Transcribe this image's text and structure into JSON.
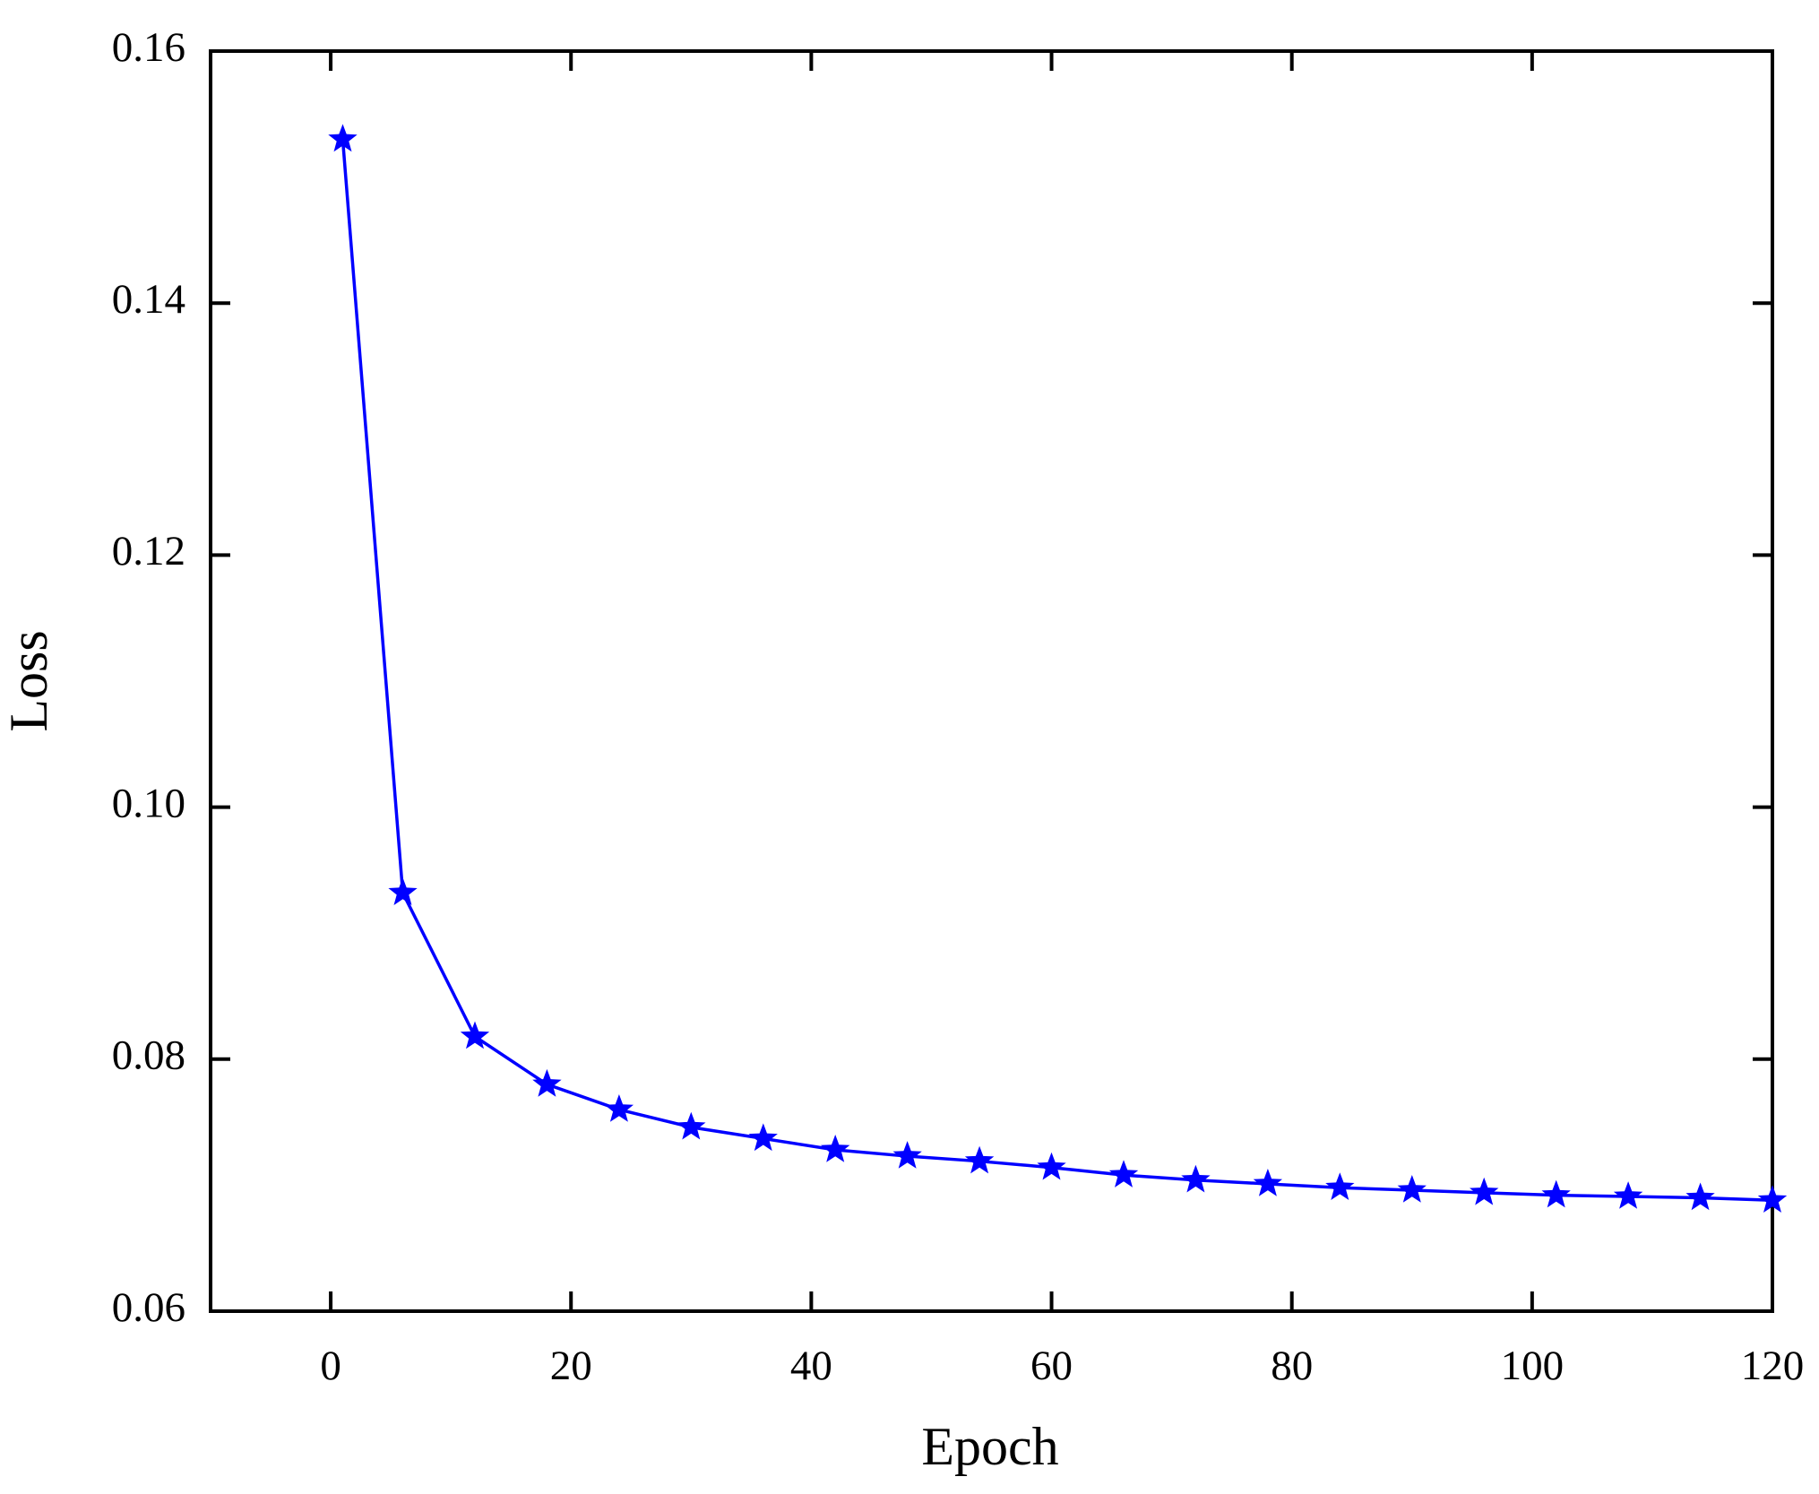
{
  "chart_data": {
    "type": "line",
    "x_label": "Epoch",
    "y_label": "Loss",
    "x": [
      1,
      6,
      12,
      18,
      24,
      30,
      36,
      42,
      48,
      54,
      60,
      66,
      72,
      78,
      84,
      90,
      96,
      102,
      108,
      114,
      120
    ],
    "series": [
      {
        "color": "#0000ff",
        "marker": "star",
        "values": [
          0.153,
          0.0932,
          0.0818,
          0.078,
          0.076,
          0.0746,
          0.0737,
          0.0728,
          0.0723,
          0.0719,
          0.0714,
          0.0708,
          0.0704,
          0.0701,
          0.0698,
          0.0696,
          0.0694,
          0.0692,
          0.0691,
          0.069,
          0.0688
        ]
      }
    ],
    "xlim": [
      -10,
      120
    ],
    "xticks": [
      0,
      20,
      40,
      60,
      80,
      100,
      120
    ],
    "ylim": [
      0.06,
      0.16
    ],
    "yticks": [
      {
        "value": 0.06,
        "label": "0.06"
      },
      {
        "value": 0.08,
        "label": "0.08"
      },
      {
        "value": 0.1,
        "label": "0.10"
      },
      {
        "value": 0.12,
        "label": "0.12"
      },
      {
        "value": 0.14,
        "label": "0.14"
      },
      {
        "value": 0.16,
        "label": "0.16"
      }
    ],
    "grid": false
  }
}
